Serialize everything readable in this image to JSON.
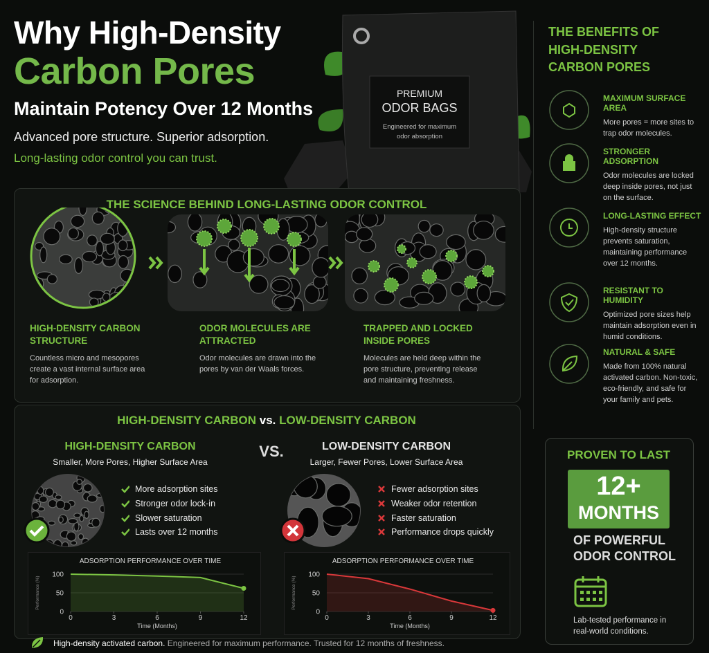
{
  "header": {
    "title_line1": "Why High-Density",
    "title_line2": "Carbon Pores",
    "title_line3": "Maintain Potency Over 12 Months",
    "tagline": "Advanced pore structure. Superior adsorption.",
    "subtagline": "Long-lasting odor control you can trust."
  },
  "product": {
    "label_line1": "PREMIUM",
    "label_line2": "ODOR BAGS",
    "label_note_line1": "Engineered for maximum",
    "label_note_line2": "odor absorption"
  },
  "benefits": {
    "title": "THE BENEFITS OF HIGH-DENSITY CARBON PORES",
    "items": [
      {
        "title": "MAXIMUM SURFACE AREA",
        "text": "More pores = more sites to trap odor molecules."
      },
      {
        "title": "STRONGER ADSORPTION",
        "text": "Odor molecules are locked deep inside pores, not just on the surface."
      },
      {
        "title": "LONG-LASTING EFFECT",
        "text": "High-density structure prevents saturation, maintaining performance over 12 months."
      },
      {
        "title": "RESISTANT TO HUMIDITY",
        "text": "Optimized pore sizes help maintain adsorption even in humid conditions."
      },
      {
        "title": "NATURAL & SAFE",
        "text": "Made from 100% natural activated carbon. Non-toxic, eco-friendly, and safe for your family and pets."
      }
    ]
  },
  "science": {
    "title": "THE SCIENCE BEHIND LONG-LASTING ODOR CONTROL",
    "steps": [
      {
        "title": "HIGH-DENSITY CARBON STRUCTURE",
        "text": "Countless micro and mesopores create a vast internal surface area for adsorption."
      },
      {
        "title": "ODOR MOLECULES ARE ATTRACTED",
        "text": "Odor molecules are drawn into the pores by van der Waals forces."
      },
      {
        "title": "TRAPPED AND LOCKED INSIDE PORES",
        "text": "Molecules are held deep within the pore structure, preventing release and maintaining freshness."
      }
    ]
  },
  "comparison": {
    "title_high": "HIGH-DENSITY CARBON",
    "title_vs": "vs.",
    "title_low": "LOW-DENSITY CARBON",
    "vs": "VS.",
    "high": {
      "title": "HIGH-DENSITY CARBON",
      "subtitle": "Smaller, More Pores, Higher Surface Area",
      "points": [
        "More adsorption sites",
        "Stronger odor lock-in",
        "Slower saturation",
        "Lasts over 12 months"
      ],
      "chart": {
        "type": "line",
        "title": "ADSORPTION PERFORMANCE OVER TIME",
        "y_label": "Performance (%)",
        "x_label": "Time (Months)",
        "x": [
          0,
          3,
          6,
          9,
          12
        ],
        "values": [
          100,
          98,
          95,
          91,
          62
        ],
        "xlim": [
          0,
          12
        ],
        "ylim": [
          0,
          100
        ],
        "xticks": [
          0,
          3,
          6,
          9,
          12
        ],
        "yticks": [
          0,
          50,
          100
        ],
        "color": "#7cc443"
      }
    },
    "low": {
      "title": "LOW-DENSITY CARBON",
      "subtitle": "Larger, Fewer Pores, Lower Surface Area",
      "points": [
        "Fewer adsorption sites",
        "Weaker odor retention",
        "Faster saturation",
        "Performance drops quickly"
      ],
      "chart": {
        "type": "line",
        "title": "ADSORPTION PERFORMANCE OVER TIME",
        "y_label": "Performance (%)",
        "x_label": "Time (Months)",
        "x": [
          0,
          3,
          6,
          9,
          12
        ],
        "values": [
          100,
          88,
          60,
          28,
          3
        ],
        "xlim": [
          0,
          12
        ],
        "ylim": [
          0,
          100
        ],
        "xticks": [
          0,
          3,
          6,
          9,
          12
        ],
        "yticks": [
          0,
          50,
          100
        ],
        "color": "#d9383a"
      }
    }
  },
  "proven": {
    "title": "PROVEN TO LAST",
    "number": "12+",
    "unit": "MONTHS",
    "line1": "OF POWERFUL",
    "line2": "ODOR CONTROL",
    "note": "Lab-tested performance in real-world conditions."
  },
  "footer": {
    "text_strong": "High-density activated carbon.",
    "text_rest": "Engineered for maximum performance. Trusted for 12 months of freshness."
  }
}
